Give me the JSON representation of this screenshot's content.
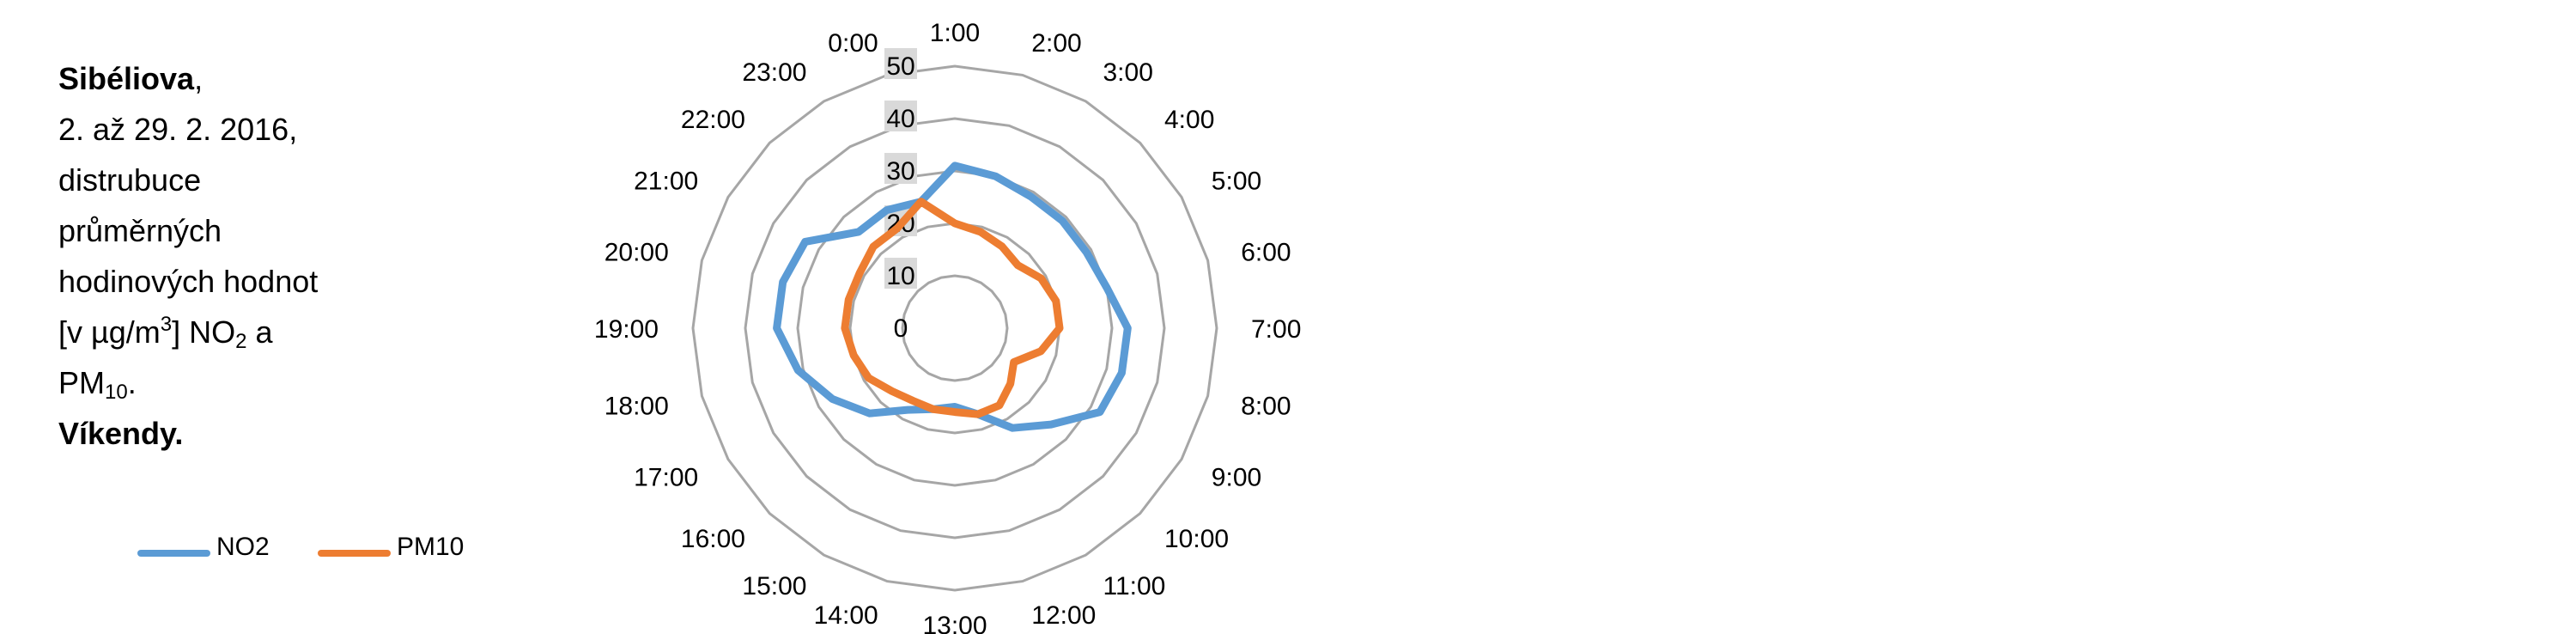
{
  "caption": {
    "station": "Sibéliova",
    "station_suffix": ",",
    "period": "2. až 29. 2. 2016,",
    "line3": "distrubuce",
    "line4": "průměrných",
    "line5": "hodinových hodnot",
    "line6_a": "[v µg/m",
    "line6_sup": "3",
    "line6_b": "] NO",
    "line6_sub": "2",
    "line6_c": " a",
    "line7_a": "PM",
    "line7_sub": "10",
    "line7_c": ".",
    "line8": "Víkendy."
  },
  "colors": {
    "no2": "#5B9BD5",
    "pm10": "#ED7D31",
    "grid": "#A6A6A6",
    "tick_bg": "#D9D9D9"
  },
  "chart_data": {
    "type": "radar",
    "categories": [
      "0:00",
      "1:00",
      "2:00",
      "3:00",
      "4:00",
      "5:00",
      "6:00",
      "7:00",
      "8:00",
      "9:00",
      "10:00",
      "11:00",
      "12:00",
      "13:00",
      "14:00",
      "15:00",
      "16:00",
      "17:00",
      "18:00",
      "19:00",
      "20:00",
      "21:00",
      "22:00",
      "23:00"
    ],
    "series": [
      {
        "name": "NO2",
        "values": [
          25,
          31,
          30,
          29,
          29,
          29,
          30,
          33,
          33,
          32,
          26,
          22,
          17,
          15,
          16,
          18,
          23,
          27,
          31,
          34,
          34,
          33,
          26,
          26
        ]
      },
      {
        "name": "PM10",
        "values": [
          25,
          20,
          19,
          18,
          17,
          19,
          20,
          20,
          17,
          13,
          15,
          17,
          17,
          16,
          16,
          16,
          17,
          19,
          20,
          21,
          21,
          21,
          22,
          22
        ]
      }
    ],
    "rlim": [
      0,
      50
    ],
    "ticks": [
      "0",
      "10",
      "20",
      "30",
      "40",
      "50"
    ],
    "legend_position": "bottom-left",
    "grid": true
  }
}
